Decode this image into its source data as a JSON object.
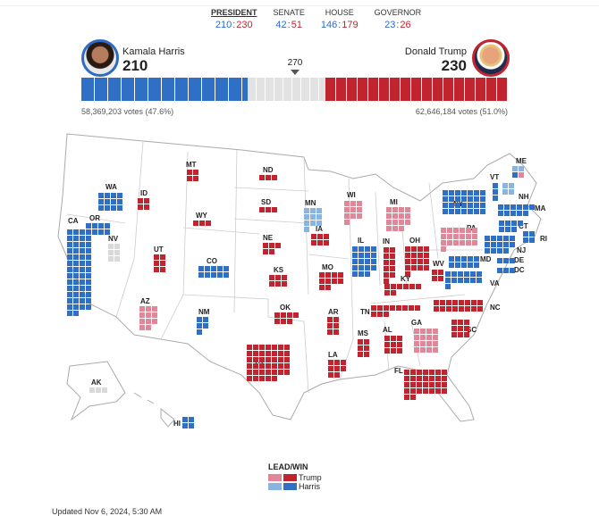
{
  "races": [
    {
      "name": "PRESIDENT",
      "dem": "210",
      "rep": "230",
      "active": true
    },
    {
      "name": "SENATE",
      "dem": "42",
      "rep": "51",
      "active": false
    },
    {
      "name": "HOUSE",
      "dem": "146",
      "rep": "179",
      "active": false
    },
    {
      "name": "GOVERNOR",
      "dem": "23",
      "rep": "26",
      "active": false
    }
  ],
  "harris": {
    "name": "Kamala Harris",
    "ev": "210",
    "votes": "58,369,203 votes (47.6%)",
    "ev_num": 210
  },
  "trump": {
    "name": "Donald Trump",
    "ev": "230",
    "votes": "62,646,184 votes (51.0%)",
    "ev_num": 230
  },
  "threshold": "270",
  "total_ev": 538,
  "colors": {
    "trump_win": "#c0242f",
    "trump_lead": "#e0879a",
    "harris_win": "#2f6fc6",
    "harris_lead": "#8ab4e0",
    "pending": "#d9d9d9"
  },
  "states": [
    {
      "abbr": "WA",
      "ev": 12,
      "status": "H"
    },
    {
      "abbr": "OR",
      "ev": 8,
      "status": "H"
    },
    {
      "abbr": "CA",
      "ev": 54,
      "status": "H"
    },
    {
      "abbr": "NV",
      "ev": 6,
      "status": "U"
    },
    {
      "abbr": "ID",
      "ev": 4,
      "status": "T"
    },
    {
      "abbr": "MT",
      "ev": 4,
      "status": "T"
    },
    {
      "abbr": "WY",
      "ev": 3,
      "status": "T"
    },
    {
      "abbr": "UT",
      "ev": 6,
      "status": "T"
    },
    {
      "abbr": "AZ",
      "ev": 11,
      "status": "t"
    },
    {
      "abbr": "CO",
      "ev": 10,
      "status": "H"
    },
    {
      "abbr": "NM",
      "ev": 5,
      "status": "H"
    },
    {
      "abbr": "ND",
      "ev": 3,
      "status": "T"
    },
    {
      "abbr": "SD",
      "ev": 3,
      "status": "T"
    },
    {
      "abbr": "NE",
      "ev": 5,
      "status": "T"
    },
    {
      "abbr": "KS",
      "ev": 6,
      "status": "T"
    },
    {
      "abbr": "OK",
      "ev": 7,
      "status": "T"
    },
    {
      "abbr": "TX",
      "ev": 40,
      "status": "T"
    },
    {
      "abbr": "MN",
      "ev": 10,
      "status": "h"
    },
    {
      "abbr": "IA",
      "ev": 6,
      "status": "T"
    },
    {
      "abbr": "MO",
      "ev": 10,
      "status": "T"
    },
    {
      "abbr": "AR",
      "ev": 6,
      "status": "T"
    },
    {
      "abbr": "LA",
      "ev": 8,
      "status": "T"
    },
    {
      "abbr": "WI",
      "ev": 10,
      "status": "t"
    },
    {
      "abbr": "IL",
      "ev": 19,
      "status": "H"
    },
    {
      "abbr": "MI",
      "ev": 15,
      "status": "t"
    },
    {
      "abbr": "IN",
      "ev": 11,
      "status": "T"
    },
    {
      "abbr": "OH",
      "ev": 17,
      "status": "T"
    },
    {
      "abbr": "KY",
      "ev": 8,
      "status": "T"
    },
    {
      "abbr": "TN",
      "ev": 11,
      "status": "T"
    },
    {
      "abbr": "MS",
      "ev": 6,
      "status": "T"
    },
    {
      "abbr": "AL",
      "ev": 9,
      "status": "T"
    },
    {
      "abbr": "GA",
      "ev": 16,
      "status": "t"
    },
    {
      "abbr": "FL",
      "ev": 30,
      "status": "T"
    },
    {
      "abbr": "SC",
      "ev": 9,
      "status": "T"
    },
    {
      "abbr": "NC",
      "ev": 16,
      "status": "T"
    },
    {
      "abbr": "WV",
      "ev": 4,
      "status": "T"
    },
    {
      "abbr": "VA",
      "ev": 13,
      "status": "H"
    },
    {
      "abbr": "MD",
      "ev": 10,
      "status": "H"
    },
    {
      "abbr": "DE",
      "ev": 3,
      "status": "H"
    },
    {
      "abbr": "DC",
      "ev": 3,
      "status": "H"
    },
    {
      "abbr": "PA",
      "ev": 19,
      "status": "t"
    },
    {
      "abbr": "NJ",
      "ev": 14,
      "status": "H"
    },
    {
      "abbr": "NY",
      "ev": 28,
      "status": "H"
    },
    {
      "abbr": "CT",
      "ev": 7,
      "status": "H"
    },
    {
      "abbr": "RI",
      "ev": 4,
      "status": "H"
    },
    {
      "abbr": "MA",
      "ev": 11,
      "status": "H"
    },
    {
      "abbr": "VT",
      "ev": 3,
      "status": "H"
    },
    {
      "abbr": "NH",
      "ev": 4,
      "status": "h"
    },
    {
      "abbr": "ME",
      "ev": 4,
      "status": "h",
      "tiles": [
        "h",
        "h",
        "H",
        "t"
      ]
    },
    {
      "abbr": "AK",
      "ev": 3,
      "status": "U"
    },
    {
      "abbr": "HI",
      "ev": 4,
      "status": "H"
    }
  ],
  "legend": {
    "title": "LEAD/WIN",
    "trump": "Trump",
    "harris": "Harris"
  },
  "updated": "Updated Nov 6, 2024, 5:30 AM"
}
